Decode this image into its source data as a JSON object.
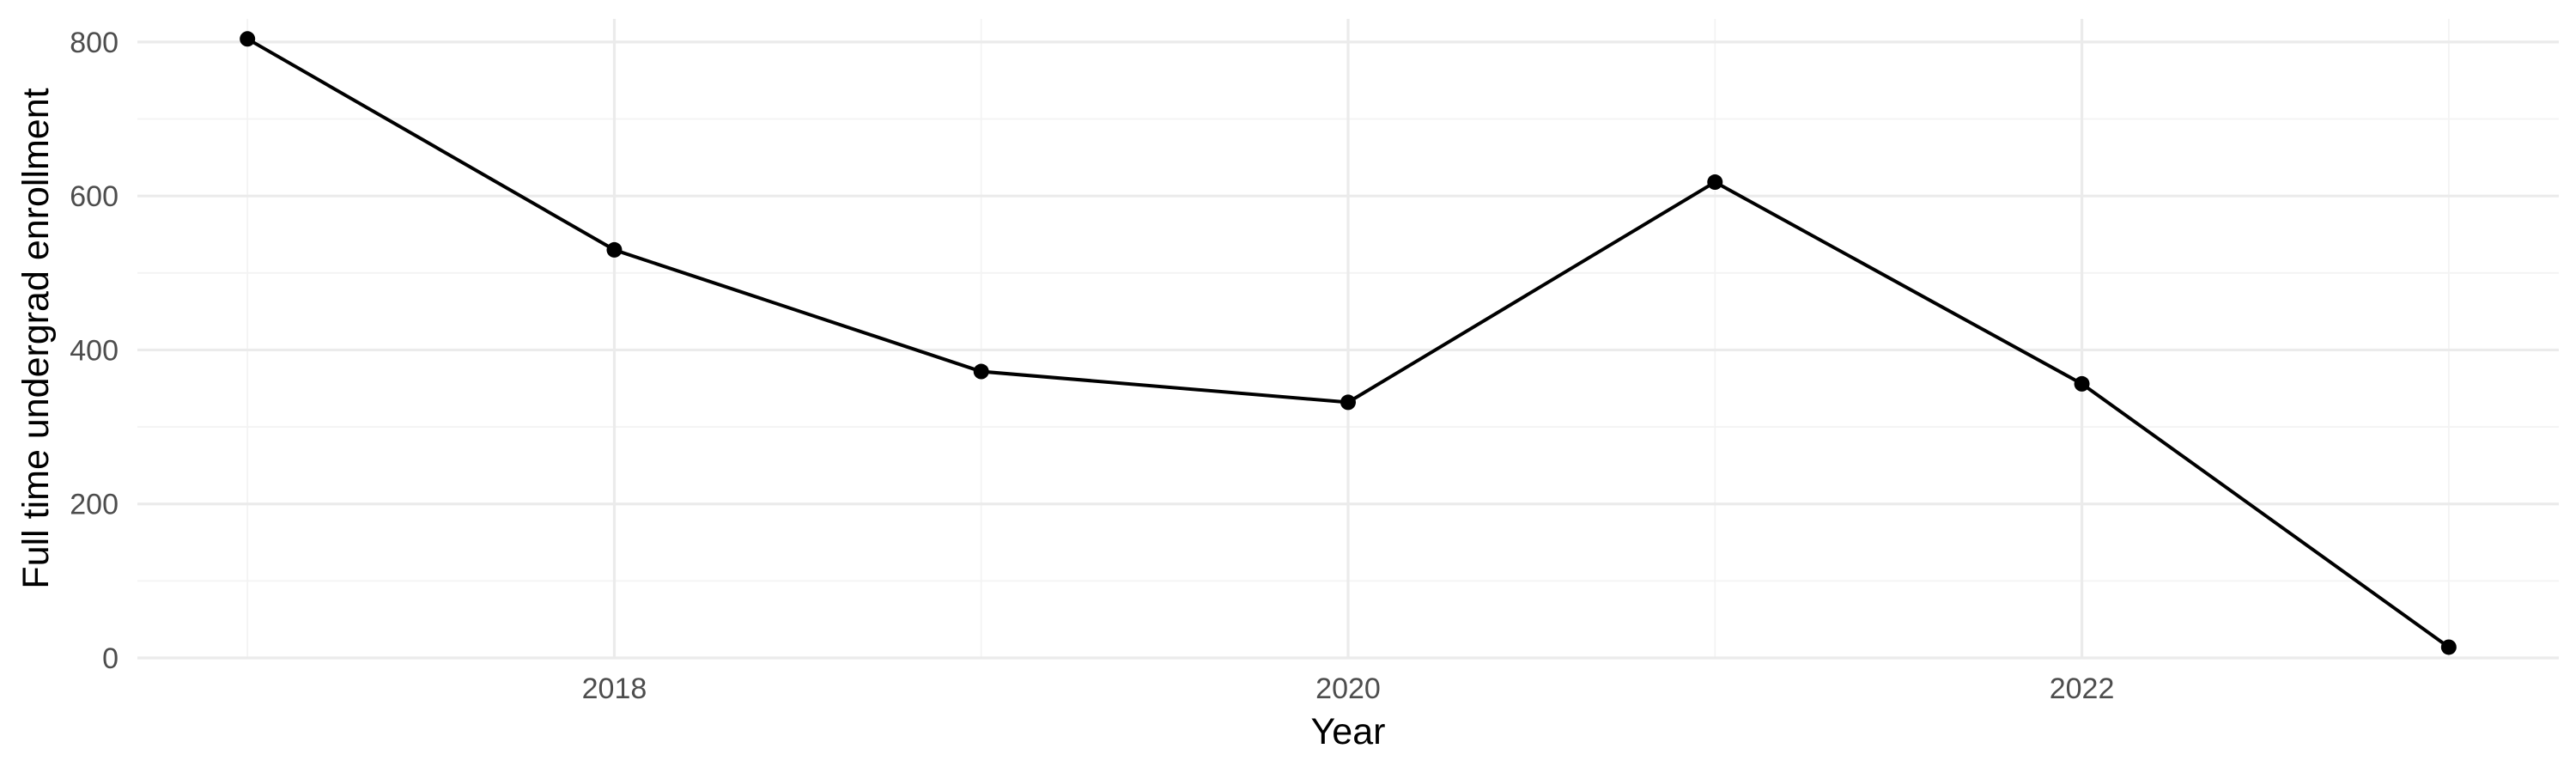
{
  "chart_data": {
    "type": "line",
    "xlabel": "Year",
    "ylabel": "Full time undergrad enrollment",
    "x": [
      2017,
      2018,
      2019,
      2020,
      2021,
      2022,
      2023
    ],
    "series": [
      {
        "values": [
          804,
          530,
          372,
          332,
          618,
          356,
          14
        ]
      }
    ],
    "xlim": [
      2016.7,
      2023.3
    ],
    "ylim": [
      0,
      830
    ],
    "x_ticks": [
      2018,
      2020,
      2022
    ],
    "y_ticks": [
      0,
      200,
      400,
      600,
      800
    ],
    "x_minor_ticks": [
      2017,
      2019,
      2021,
      2023
    ],
    "y_minor_ticks": [
      100,
      300,
      500,
      700
    ],
    "grid": true,
    "colors": {
      "line": "#000000",
      "point": "#000000",
      "grid": "#ebebeb"
    }
  }
}
